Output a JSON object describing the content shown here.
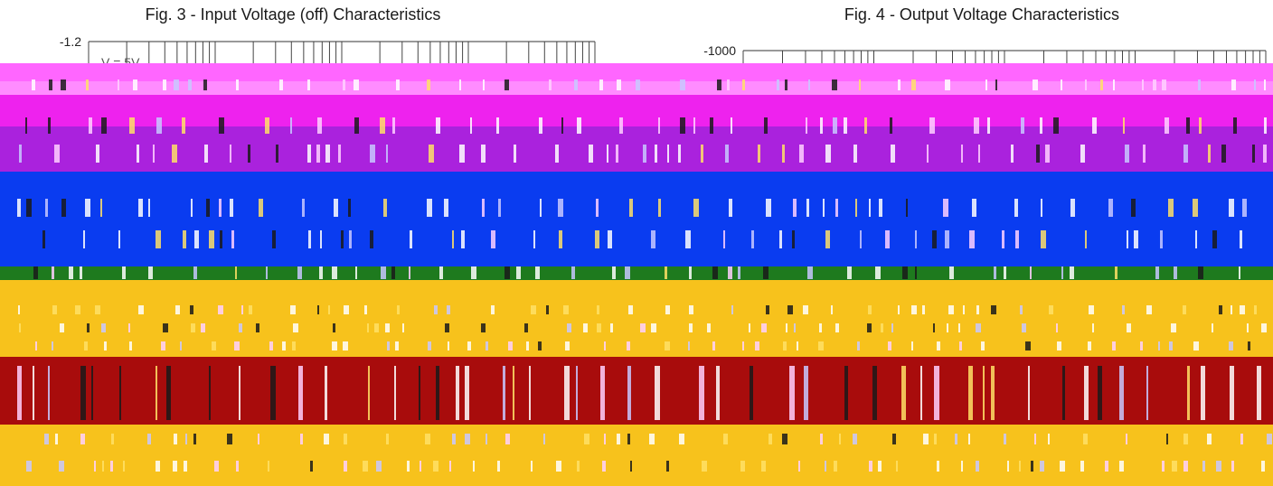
{
  "figures": [
    {
      "title": "Fig. 3 - Input Voltage (off) Characteristics",
      "y_top_tick": "-1.2",
      "annotation": "V     = 5V"
    },
    {
      "title": "Fig. 4 - Output Voltage Characteristics",
      "y_top_tick": "-1000"
    }
  ],
  "chart_data": [
    {
      "type": "line",
      "title": "Fig. 3 - Input Voltage (off) Characteristics",
      "y_tick_labels": [
        "-1.2"
      ],
      "annotations": [
        "V     = 5V"
      ],
      "grid": true,
      "series": []
    },
    {
      "type": "line",
      "title": "Fig. 4 - Output Voltage Characteristics",
      "y_tick_labels": [
        "-1000"
      ],
      "grid": true,
      "series": []
    }
  ],
  "colors": {
    "band_pink": "#ff66ff",
    "band_magenta": "#ee22ee",
    "band_purple": "#aa22dd",
    "band_blue": "#0a3cf0",
    "band_green": "#1e7a1e",
    "band_yellow": "#f7c21c",
    "band_red": "#a80c0c",
    "stripe_dark": "#1a1a1a"
  }
}
